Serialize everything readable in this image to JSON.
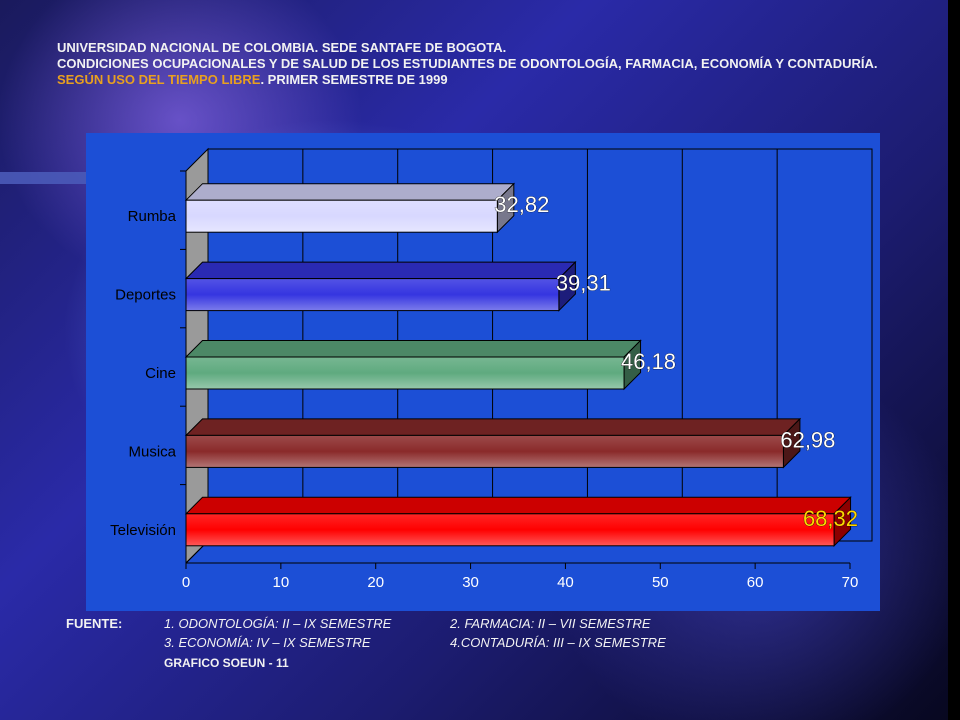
{
  "header": {
    "line1": "UNIVERSIDAD NACIONAL DE COLOMBIA. SEDE SANTAFE DE BOGOTA.",
    "line2": "CONDICIONES OCUPACIONALES Y DE SALUD DE LOS ESTUDIANTES DE ODONTOLOGÍA, FARMACIA, ECONOMÍA Y CONTADURÍA.",
    "line3_highlight": "SEGÚN USO DEL TIEMPO LIBRE",
    "line3_rest": ". PRIMER SEMESTRE DE 1999"
  },
  "chart_data": {
    "type": "bar",
    "orientation": "horizontal",
    "categories": [
      "Rumba",
      "Deportes",
      "Cine",
      "Musica",
      "Televisión"
    ],
    "values": [
      32.82,
      39.31,
      46.18,
      62.98,
      68.32
    ],
    "data_labels": [
      "32,82",
      "39,31",
      "46,18",
      "62,98",
      "68,32"
    ],
    "xlim": [
      0,
      70
    ],
    "xticks": [
      "0",
      "10",
      "20",
      "30",
      "40",
      "50",
      "60",
      "70"
    ],
    "grid": "vertical",
    "colors": {
      "Rumba": "#d8d8ff",
      "Deportes": "#3535e0",
      "Cine": "#5faa7f",
      "Musica": "#8a2a2a",
      "Televisión": "#ff0000"
    },
    "label_colors": [
      "#ffffff",
      "#ffffff",
      "#ffffff",
      "#ffffff",
      "#ffd700"
    ]
  },
  "footer": {
    "fuente": "FUENTE:",
    "item1": "1. ODONTOLOGÍA: II  – IX SEMESTRE",
    "item2": "2. FARMACIA: II  – VII SEMESTRE",
    "item3": "3. ECONOMÍA: IV – IX SEMESTRE",
    "item4": "4.CONTADURÍA: III – IX SEMESTRE",
    "graph_id": "GRAFICO SOEUN - 11"
  }
}
